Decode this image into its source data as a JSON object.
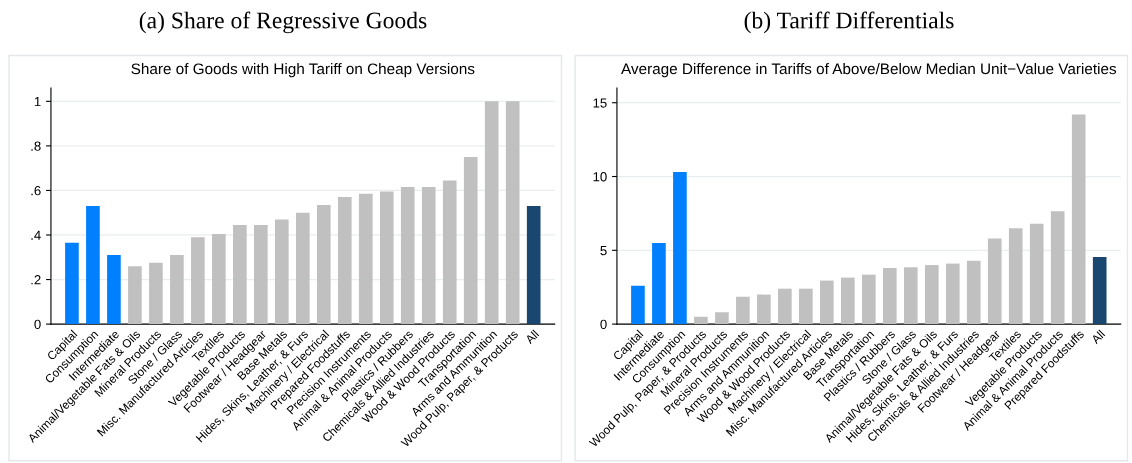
{
  "chart_data": [
    {
      "type": "bar",
      "title": "(a) Share of Regressive Goods",
      "subtitle": "Share of Goods with High Tariff on Cheap Versions",
      "categories": [
        "Capital",
        "Consumption",
        "Intermediate",
        "Animal/Vegetable Fats & Oils",
        "Mineral Products",
        "Stone / Glass",
        "Misc. Manufactured Articles",
        "Textiles",
        "Vegetable Products",
        "Footwear / Headgear",
        "Base Metals",
        "Hides, Skins, Leather, & Furs",
        "Machinery / Electrical",
        "Prepared Foodstuffs",
        "Precision Instruments",
        "Animal & Animal Products",
        "Plastics / Rubbers",
        "Chemicals & Allied Industries",
        "Wood & Wood Products",
        "Transportation",
        "Arms and Ammunition",
        "Wood Pulp, Paper, & Products",
        "All"
      ],
      "values": [
        0.365,
        0.53,
        0.31,
        0.26,
        0.275,
        0.31,
        0.39,
        0.405,
        0.445,
        0.445,
        0.47,
        0.5,
        0.535,
        0.57,
        0.585,
        0.595,
        0.615,
        0.615,
        0.645,
        0.75,
        1,
        1,
        0.53
      ],
      "colors": [
        "#007fff",
        "#007fff",
        "#007fff",
        "#c0c0c0",
        "#c0c0c0",
        "#c0c0c0",
        "#c0c0c0",
        "#c0c0c0",
        "#c0c0c0",
        "#c0c0c0",
        "#c0c0c0",
        "#c0c0c0",
        "#c0c0c0",
        "#c0c0c0",
        "#c0c0c0",
        "#c0c0c0",
        "#c0c0c0",
        "#c0c0c0",
        "#c0c0c0",
        "#c0c0c0",
        "#c0c0c0",
        "#c0c0c0",
        "#1a476f"
      ],
      "ylim": [
        0,
        1.06
      ],
      "yticks": [
        0,
        {
          "value": 0.2,
          "label": ".2"
        },
        {
          "value": 0.4,
          "label": ".4"
        },
        {
          "value": 0.6,
          "label": ".6"
        },
        {
          "value": 0.8,
          "label": ".8"
        },
        1
      ],
      "grid": "y"
    },
    {
      "type": "bar",
      "title": "(b) Tariff Differentials",
      "subtitle": "Average Difference in Tariffs of Above/Below Median Unit−Value Varieties",
      "categories": [
        "Capital",
        "Intermediate",
        "Consumption",
        "Wood Pulp, Paper, & Products",
        "Mineral Products",
        "Precision Instruments",
        "Arms and Ammunition",
        "Wood & Wood Products",
        "Machinery / Electrical",
        "Misc. Manufactured Articles",
        "Base Metals",
        "Transportation",
        "Plastics / Rubbers",
        "Stone / Glass",
        "Animal/Vegetable Fats & Oils",
        "Hides, Skins, Leather, & Furs",
        "Chemicals & Allied Industries",
        "Footwear / Headgear",
        "Textiles",
        "Vegetable Products",
        "Animal & Animal Products",
        "Prepared Foodstuffs",
        "All"
      ],
      "values": [
        2.6,
        5.5,
        10.3,
        0.5,
        0.8,
        1.85,
        2.0,
        2.4,
        2.4,
        2.95,
        3.15,
        3.35,
        3.8,
        3.85,
        4.0,
        4.1,
        4.3,
        5.8,
        6.5,
        6.8,
        7.65,
        14.2,
        4.55
      ],
      "colors": [
        "#007fff",
        "#007fff",
        "#007fff",
        "#c0c0c0",
        "#c0c0c0",
        "#c0c0c0",
        "#c0c0c0",
        "#c0c0c0",
        "#c0c0c0",
        "#c0c0c0",
        "#c0c0c0",
        "#c0c0c0",
        "#c0c0c0",
        "#c0c0c0",
        "#c0c0c0",
        "#c0c0c0",
        "#c0c0c0",
        "#c0c0c0",
        "#c0c0c0",
        "#c0c0c0",
        "#c0c0c0",
        "#c0c0c0",
        "#1a476f"
      ],
      "ylim": [
        0,
        16
      ],
      "yticks": [
        0,
        5,
        10,
        15
      ],
      "grid": "y"
    }
  ]
}
